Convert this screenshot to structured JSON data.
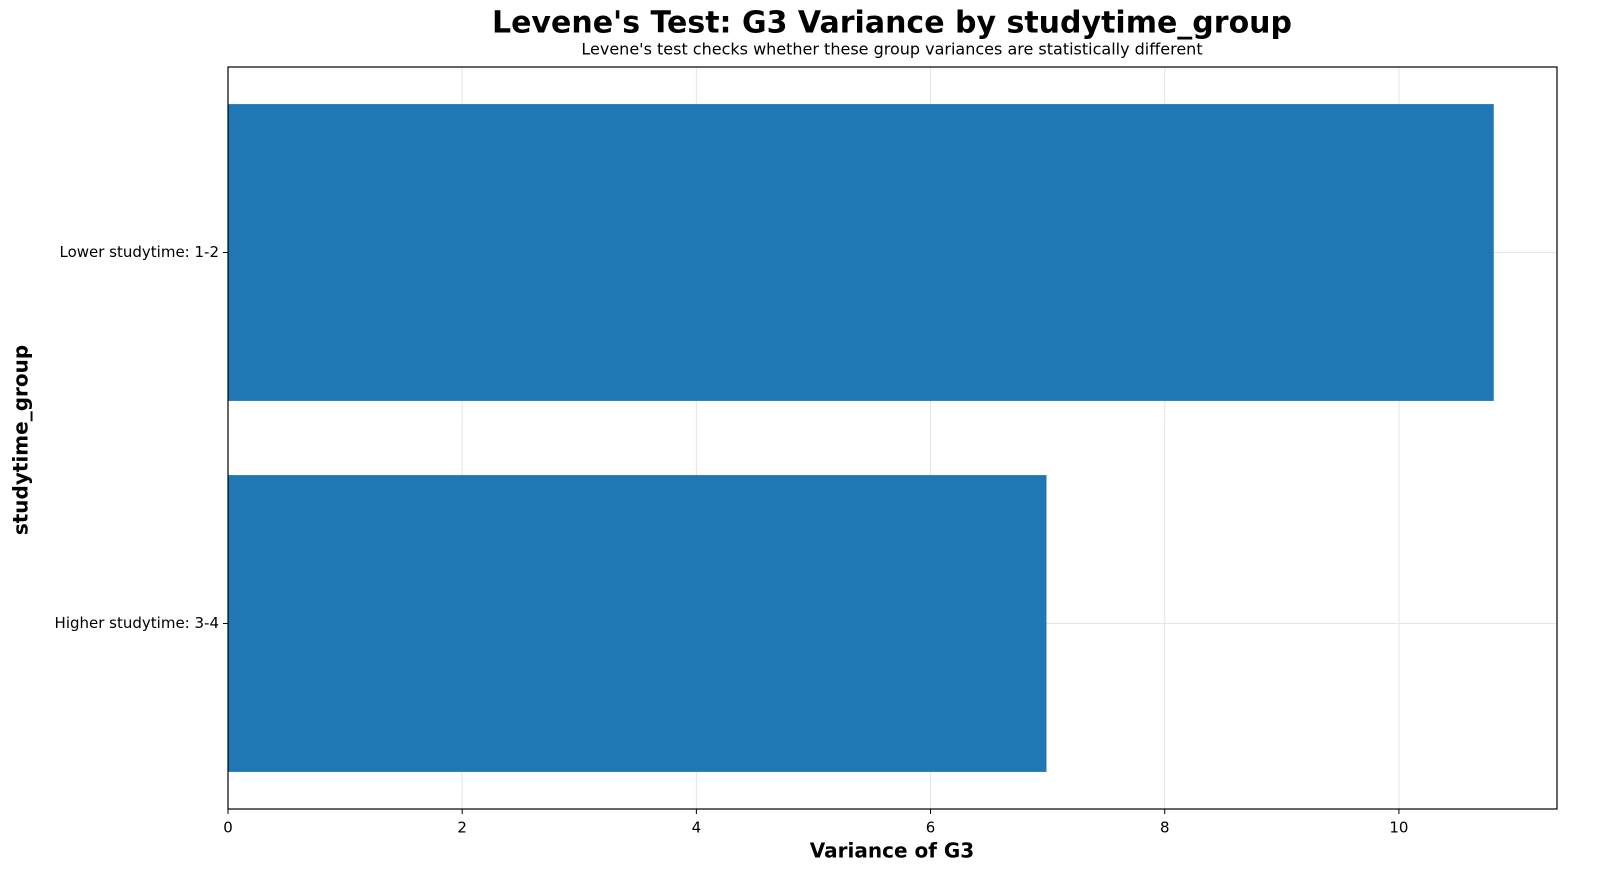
{
  "chart_data": {
    "type": "barh",
    "title": "Levene's Test: G3 Variance by studytime_group",
    "subtitle": "Levene's test checks whether these group variances are statistically different",
    "x_label": "Variance of G3",
    "y_label": "studytime_group",
    "categories": [
      "Lower studytime: 1-2",
      "Higher studytime: 3-4"
    ],
    "values": [
      10.81,
      6.99
    ],
    "color": "#1f77b4",
    "xlim": [
      0,
      11.35
    ],
    "xticks": [
      0,
      2,
      4,
      6,
      8,
      10
    ],
    "grid": true
  }
}
